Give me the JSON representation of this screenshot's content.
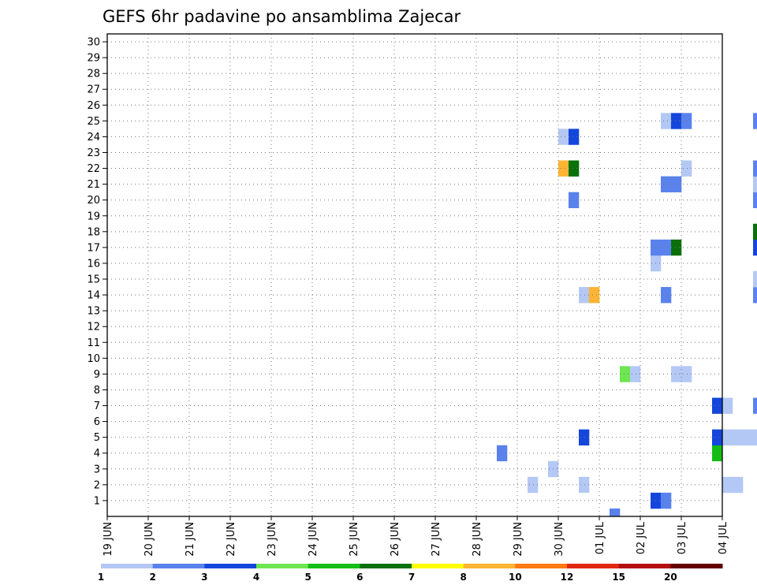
{
  "chart_data": {
    "type": "heatmap",
    "title": "GEFS 6hr padavine po ansamblima Zajecar",
    "xlabel": "",
    "ylabel": "",
    "x_ticks": [
      "19 JUN",
      "20 JUN",
      "21 JUN",
      "22 JUN",
      "23 JUN",
      "24 JUN",
      "25 JUN",
      "26 JUN",
      "27 JUN",
      "28 JUN",
      "29 JUN",
      "30 JUN",
      "01 JUL",
      "02 JUL",
      "03 JUL",
      "04 JUL"
    ],
    "y_ticks": [
      1,
      2,
      3,
      4,
      5,
      6,
      7,
      8,
      9,
      10,
      11,
      12,
      13,
      14,
      15,
      16,
      17,
      18,
      19,
      20,
      21,
      22,
      23,
      24,
      25,
      26,
      27,
      28,
      29,
      30
    ],
    "x_range_days": [
      0,
      15
    ],
    "x_step_hours": 6,
    "y_range": [
      0,
      30
    ],
    "grid": true,
    "colorbar": {
      "position": "bottom",
      "labels": [
        "1",
        "2",
        "3",
        "4",
        "5",
        "6",
        "7",
        "8",
        "10",
        "12",
        "15",
        "20"
      ],
      "colors": [
        "#b4c8f5",
        "#5a82ec",
        "#1446dc",
        "#6ee650",
        "#14be14",
        "#0a700a",
        "#ffff00",
        "#ffb432",
        "#ff7810",
        "#e12810",
        "#b41010",
        "#640000"
      ]
    },
    "cells_format": "[time_step_from_19JUN_00z, member, color_index]",
    "cells": [
      [
        53,
        1,
        2
      ],
      [
        54,
        1,
        1
      ],
      [
        41,
        2,
        0
      ],
      [
        46,
        2,
        0
      ],
      [
        60,
        2,
        0
      ],
      [
        61,
        2,
        0
      ],
      [
        67,
        2,
        3
      ],
      [
        96,
        2,
        1
      ],
      [
        97,
        2,
        5
      ],
      [
        138,
        2,
        0
      ],
      [
        43,
        3,
        0
      ],
      [
        110,
        3,
        0
      ],
      [
        113,
        3,
        2
      ],
      [
        38,
        4,
        1
      ],
      [
        59,
        4,
        4
      ],
      [
        65,
        4,
        0
      ],
      [
        66,
        4,
        9
      ],
      [
        67,
        4,
        9
      ],
      [
        68,
        4,
        10
      ],
      [
        69,
        4,
        8
      ],
      [
        96,
        4,
        0
      ],
      [
        118,
        4,
        0
      ],
      [
        46,
        5,
        2
      ],
      [
        59,
        5,
        2
      ],
      [
        60,
        5,
        0
      ],
      [
        61,
        5,
        0
      ],
      [
        62,
        5,
        0
      ],
      [
        63,
        5,
        0
      ],
      [
        71,
        5,
        1
      ],
      [
        72,
        5,
        8
      ],
      [
        73,
        5,
        2
      ],
      [
        81,
        5,
        1
      ],
      [
        116,
        5,
        0
      ],
      [
        117,
        5,
        0
      ],
      [
        118,
        5,
        6
      ],
      [
        119,
        5,
        0
      ],
      [
        70,
        6,
        4
      ],
      [
        71,
        6,
        9
      ],
      [
        80,
        6,
        1
      ],
      [
        120,
        6,
        7
      ],
      [
        121,
        6,
        7
      ],
      [
        123,
        6,
        4
      ],
      [
        124,
        6,
        5
      ],
      [
        125,
        6,
        1
      ],
      [
        126,
        6,
        2
      ],
      [
        127,
        6,
        0
      ],
      [
        59,
        7,
        2
      ],
      [
        60,
        7,
        0
      ],
      [
        63,
        7,
        1
      ],
      [
        75,
        7,
        2
      ],
      [
        117,
        7,
        0
      ],
      [
        121,
        7,
        5
      ],
      [
        122,
        7,
        5
      ],
      [
        123,
        7,
        2
      ],
      [
        124,
        7,
        2
      ],
      [
        125,
        7,
        2
      ],
      [
        126,
        7,
        7
      ],
      [
        127,
        7,
        7
      ],
      [
        128,
        7,
        0
      ],
      [
        70,
        8,
        0
      ],
      [
        72,
        8,
        8
      ],
      [
        73,
        8,
        7
      ],
      [
        74,
        8,
        1
      ],
      [
        75,
        8,
        0
      ],
      [
        76,
        8,
        1
      ],
      [
        78,
        8,
        5
      ],
      [
        79,
        8,
        0
      ],
      [
        122,
        8,
        0
      ],
      [
        123,
        8,
        0
      ],
      [
        125,
        8,
        1
      ],
      [
        126,
        8,
        3
      ],
      [
        144,
        8,
        7
      ],
      [
        50,
        9,
        3
      ],
      [
        51,
        9,
        0
      ],
      [
        55,
        9,
        0
      ],
      [
        56,
        9,
        0
      ],
      [
        64,
        9,
        0
      ],
      [
        72,
        9,
        1
      ],
      [
        78,
        9,
        0
      ],
      [
        104,
        9,
        2
      ],
      [
        112,
        9,
        3
      ],
      [
        66,
        10,
        1
      ],
      [
        75,
        10,
        1
      ],
      [
        76,
        10,
        1
      ],
      [
        114,
        11,
        3
      ],
      [
        80,
        12,
        5
      ],
      [
        81,
        12,
        2
      ],
      [
        84,
        12,
        1
      ],
      [
        80,
        13,
        0
      ],
      [
        102,
        13,
        0
      ],
      [
        103,
        13,
        2
      ],
      [
        46,
        14,
        0
      ],
      [
        47,
        14,
        7
      ],
      [
        54,
        14,
        1
      ],
      [
        63,
        14,
        1
      ],
      [
        63,
        15,
        0
      ],
      [
        72,
        15,
        2
      ],
      [
        73,
        15,
        5
      ],
      [
        126,
        15,
        0
      ],
      [
        53,
        16,
        0
      ],
      [
        71,
        16,
        0
      ],
      [
        72,
        16,
        3
      ],
      [
        73,
        16,
        1
      ],
      [
        84,
        16,
        11
      ],
      [
        85,
        16,
        11
      ],
      [
        126,
        16,
        1
      ],
      [
        53,
        17,
        1
      ],
      [
        54,
        17,
        1
      ],
      [
        55,
        17,
        5
      ],
      [
        63,
        17,
        2
      ],
      [
        64,
        17,
        4
      ],
      [
        72,
        17,
        4
      ],
      [
        73,
        17,
        5
      ],
      [
        78,
        17,
        2
      ],
      [
        63,
        18,
        5
      ],
      [
        112,
        19,
        2
      ],
      [
        113,
        19,
        1
      ],
      [
        114,
        19,
        2
      ],
      [
        45,
        20,
        1
      ],
      [
        63,
        20,
        1
      ],
      [
        68,
        20,
        0
      ],
      [
        69,
        20,
        2
      ],
      [
        70,
        20,
        1
      ],
      [
        71,
        20,
        0
      ],
      [
        80,
        20,
        0
      ],
      [
        114,
        20,
        2
      ],
      [
        54,
        21,
        1
      ],
      [
        55,
        21,
        1
      ],
      [
        63,
        21,
        0
      ],
      [
        44,
        22,
        7
      ],
      [
        45,
        22,
        5
      ],
      [
        56,
        22,
        0
      ],
      [
        63,
        22,
        1
      ],
      [
        64,
        22,
        0
      ],
      [
        125,
        22,
        0
      ],
      [
        126,
        22,
        0
      ],
      [
        143,
        22,
        1
      ],
      [
        77,
        23,
        2
      ],
      [
        78,
        23,
        5
      ],
      [
        89,
        23,
        1
      ],
      [
        90,
        23,
        9
      ],
      [
        91,
        23,
        1
      ],
      [
        126,
        23,
        0
      ],
      [
        44,
        24,
        0
      ],
      [
        45,
        24,
        2
      ],
      [
        144,
        24,
        0
      ],
      [
        54,
        25,
        0
      ],
      [
        55,
        25,
        2
      ],
      [
        56,
        25,
        1
      ],
      [
        63,
        25,
        1
      ],
      [
        64,
        25,
        0
      ],
      [
        88,
        26,
        4
      ],
      [
        125,
        27,
        1
      ],
      [
        126,
        27,
        4
      ],
      [
        143,
        28,
        1
      ],
      [
        144,
        28,
        1
      ],
      [
        114,
        29,
        3
      ],
      [
        115,
        29,
        3
      ],
      [
        125,
        29,
        1
      ],
      [
        126,
        29,
        4
      ],
      [
        127,
        29,
        4
      ],
      [
        49,
        0,
        1
      ],
      [
        72,
        0,
        9
      ],
      [
        79,
        0,
        0
      ],
      [
        88,
        0,
        2
      ],
      [
        91,
        0,
        0
      ],
      [
        96,
        0,
        2
      ]
    ]
  }
}
